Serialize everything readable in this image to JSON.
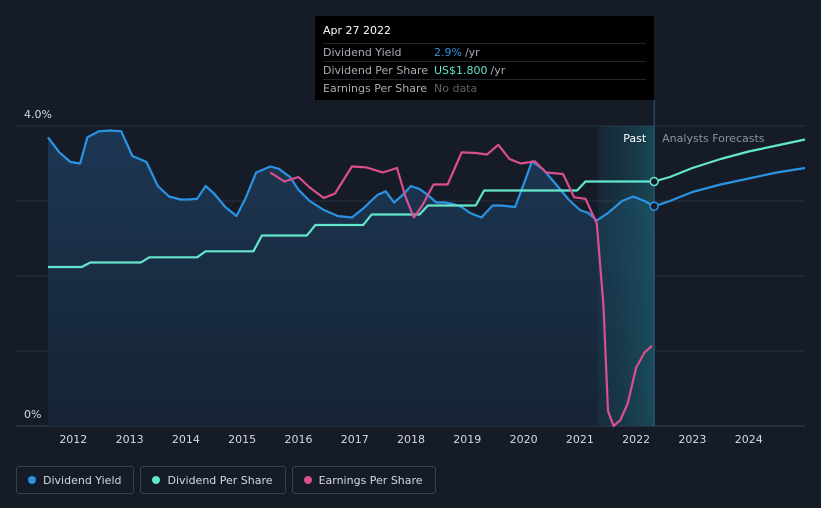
{
  "tooltip": {
    "date": "Apr 27 2022",
    "rows": [
      {
        "label": "Dividend Yield",
        "value": "2.9%",
        "unit": "/yr",
        "color": "#2b93e3"
      },
      {
        "label": "Dividend Per Share",
        "value": "US$1.800",
        "unit": "/yr",
        "color": "#64e6cd"
      },
      {
        "label": "Earnings Per Share",
        "value": "No data",
        "unit": "",
        "color": "#5c606a"
      }
    ]
  },
  "legend": [
    {
      "label": "Dividend Yield",
      "color": "#2b93e3"
    },
    {
      "label": "Dividend Per Share",
      "color": "#64e6cd"
    },
    {
      "label": "Earnings Per Share",
      "color": "#d94f8f"
    }
  ],
  "chart_data": {
    "type": "line",
    "ytick_labels": [
      "4.0%",
      "0%"
    ],
    "ylim": [
      0,
      4.0
    ],
    "xlim": [
      2011.55,
      2025.0
    ],
    "xtick_labels": [
      "2012",
      "2013",
      "2014",
      "2015",
      "2016",
      "2017",
      "2018",
      "2019",
      "2020",
      "2021",
      "2022",
      "2023",
      "2024"
    ],
    "xtick_values": [
      2012,
      2013,
      2014,
      2015,
      2016,
      2017,
      2018,
      2019,
      2020,
      2021,
      2022,
      2023,
      2024
    ],
    "region_labels": {
      "past": "Past",
      "forecast": "Analysts Forecasts"
    },
    "past_end": 2022.32,
    "highlight_start": 2021.32,
    "grid": true,
    "series": [
      {
        "name": "Dividend Yield",
        "color": "#2b93e3",
        "fill": true,
        "values": [
          [
            2011.55,
            3.85
          ],
          [
            2011.75,
            3.65
          ],
          [
            2011.95,
            3.52
          ],
          [
            2012.12,
            3.5
          ],
          [
            2012.25,
            3.85
          ],
          [
            2012.45,
            3.93
          ],
          [
            2012.65,
            3.94
          ],
          [
            2012.85,
            3.93
          ],
          [
            2013.05,
            3.6
          ],
          [
            2013.3,
            3.52
          ],
          [
            2013.5,
            3.2
          ],
          [
            2013.7,
            3.06
          ],
          [
            2013.9,
            3.02
          ],
          [
            2014.05,
            3.02
          ],
          [
            2014.2,
            3.03
          ],
          [
            2014.35,
            3.2
          ],
          [
            2014.5,
            3.1
          ],
          [
            2014.7,
            2.92
          ],
          [
            2014.9,
            2.8
          ],
          [
            2015.05,
            3.02
          ],
          [
            2015.25,
            3.38
          ],
          [
            2015.5,
            3.46
          ],
          [
            2015.65,
            3.43
          ],
          [
            2015.85,
            3.32
          ],
          [
            2016.0,
            3.15
          ],
          [
            2016.2,
            3.0
          ],
          [
            2016.45,
            2.88
          ],
          [
            2016.7,
            2.8
          ],
          [
            2016.95,
            2.78
          ],
          [
            2017.15,
            2.9
          ],
          [
            2017.4,
            3.08
          ],
          [
            2017.55,
            3.13
          ],
          [
            2017.7,
            2.98
          ],
          [
            2017.85,
            3.08
          ],
          [
            2018.0,
            3.2
          ],
          [
            2018.15,
            3.16
          ],
          [
            2018.3,
            3.08
          ],
          [
            2018.45,
            2.98
          ],
          [
            2018.6,
            2.98
          ],
          [
            2018.75,
            2.96
          ],
          [
            2018.9,
            2.92
          ],
          [
            2019.05,
            2.84
          ],
          [
            2019.25,
            2.78
          ],
          [
            2019.45,
            2.94
          ],
          [
            2019.6,
            2.94
          ],
          [
            2019.85,
            2.92
          ],
          [
            2020.0,
            3.22
          ],
          [
            2020.15,
            3.53
          ],
          [
            2020.35,
            3.42
          ],
          [
            2020.6,
            3.2
          ],
          [
            2020.8,
            3.02
          ],
          [
            2021.0,
            2.88
          ],
          [
            2021.15,
            2.84
          ],
          [
            2021.3,
            2.74
          ],
          [
            2021.5,
            2.84
          ],
          [
            2021.75,
            3.0
          ],
          [
            2021.95,
            3.06
          ],
          [
            2022.15,
            3.0
          ],
          [
            2022.32,
            2.93
          ],
          [
            2022.6,
            3.0
          ],
          [
            2023.0,
            3.12
          ],
          [
            2023.5,
            3.22
          ],
          [
            2024.0,
            3.3
          ],
          [
            2024.5,
            3.38
          ],
          [
            2025.0,
            3.44
          ]
        ]
      },
      {
        "name": "Dividend Per Share",
        "color": "#64e6cd",
        "fill": false,
        "values": [
          [
            2011.55,
            2.12
          ],
          [
            2012.15,
            2.12
          ],
          [
            2012.3,
            2.18
          ],
          [
            2013.2,
            2.18
          ],
          [
            2013.35,
            2.25
          ],
          [
            2014.2,
            2.25
          ],
          [
            2014.35,
            2.33
          ],
          [
            2015.2,
            2.33
          ],
          [
            2015.35,
            2.54
          ],
          [
            2016.15,
            2.54
          ],
          [
            2016.3,
            2.68
          ],
          [
            2017.15,
            2.68
          ],
          [
            2017.3,
            2.82
          ],
          [
            2018.15,
            2.82
          ],
          [
            2018.3,
            2.94
          ],
          [
            2019.15,
            2.94
          ],
          [
            2019.3,
            3.14
          ],
          [
            2020.95,
            3.14
          ],
          [
            2021.1,
            3.26
          ],
          [
            2022.32,
            3.26
          ],
          [
            2022.6,
            3.32
          ],
          [
            2023.0,
            3.44
          ],
          [
            2023.5,
            3.56
          ],
          [
            2024.0,
            3.66
          ],
          [
            2024.5,
            3.74
          ],
          [
            2025.0,
            3.82
          ]
        ]
      },
      {
        "name": "Earnings Per Share",
        "color": "#d94f8f",
        "fill": false,
        "values": [
          [
            2015.5,
            3.38
          ],
          [
            2015.75,
            3.26
          ],
          [
            2016.0,
            3.32
          ],
          [
            2016.2,
            3.18
          ],
          [
            2016.45,
            3.04
          ],
          [
            2016.65,
            3.1
          ],
          [
            2016.95,
            3.46
          ],
          [
            2017.2,
            3.45
          ],
          [
            2017.5,
            3.38
          ],
          [
            2017.75,
            3.44
          ],
          [
            2017.9,
            3.06
          ],
          [
            2018.05,
            2.78
          ],
          [
            2018.2,
            2.94
          ],
          [
            2018.4,
            3.22
          ],
          [
            2018.65,
            3.22
          ],
          [
            2018.9,
            3.65
          ],
          [
            2019.15,
            3.64
          ],
          [
            2019.35,
            3.62
          ],
          [
            2019.55,
            3.75
          ],
          [
            2019.75,
            3.56
          ],
          [
            2019.95,
            3.5
          ],
          [
            2020.2,
            3.53
          ],
          [
            2020.4,
            3.38
          ],
          [
            2020.7,
            3.36
          ],
          [
            2020.9,
            3.05
          ],
          [
            2021.1,
            3.03
          ],
          [
            2021.3,
            2.7
          ],
          [
            2021.42,
            1.6
          ],
          [
            2021.5,
            0.2
          ],
          [
            2021.6,
            0.0
          ],
          [
            2021.72,
            0.08
          ],
          [
            2021.85,
            0.3
          ],
          [
            2022.0,
            0.78
          ],
          [
            2022.15,
            0.98
          ],
          [
            2022.28,
            1.07
          ]
        ]
      }
    ]
  }
}
